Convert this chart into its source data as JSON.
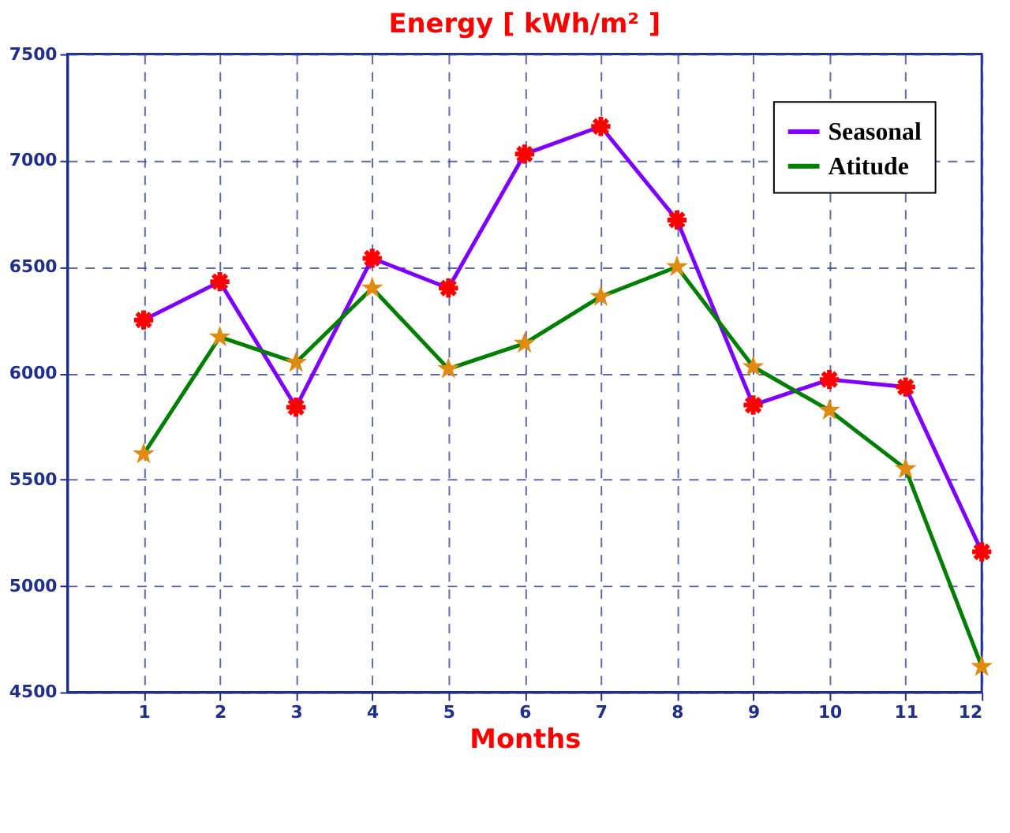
{
  "chart_data": {
    "type": "line",
    "title": "Energy [ kWh/m² ]",
    "xlabel": "Months",
    "x": [
      1,
      2,
      3,
      4,
      5,
      6,
      7,
      8,
      9,
      10,
      11,
      12
    ],
    "xlim": [
      0,
      12
    ],
    "xticks": [
      1,
      2,
      3,
      4,
      5,
      6,
      7,
      8,
      9,
      10,
      11,
      12
    ],
    "ylim": [
      4500,
      7500
    ],
    "yticks": [
      4500,
      5000,
      5500,
      6000,
      6500,
      7000,
      7500
    ],
    "grid": true,
    "legend": "top right",
    "series": [
      {
        "name": "Seasonal",
        "color": "#7f00ff",
        "marker": "cross",
        "colors": [
          "#ff0000",
          "#ff0000",
          "#ff0000",
          "#ff0000",
          "#ff0000",
          "#ff0000",
          "#ff0000",
          "#ff0000",
          "#ff0000",
          "#ff0000",
          "#ff0000",
          "#ff0000"
        ],
        "values": [
          6250,
          6430,
          5840,
          6540,
          6400,
          7030,
          7160,
          6720,
          5850,
          5970,
          5935,
          5160
        ]
      },
      {
        "name": "Atitude",
        "color": "#007f00",
        "marker": "star",
        "colors": [
          "#e08a10",
          "#e08a10",
          "#e08a10",
          "#e08a10",
          "#e08a10",
          "#e08a10",
          "#e08a10",
          "#e08a10",
          "#e08a10",
          "#e08a10",
          "#e08a10",
          "#e08a10"
        ],
        "values": [
          5620,
          6170,
          6050,
          6400,
          6020,
          6140,
          6360,
          6500,
          6030,
          5825,
          5550,
          4620
        ]
      }
    ]
  }
}
